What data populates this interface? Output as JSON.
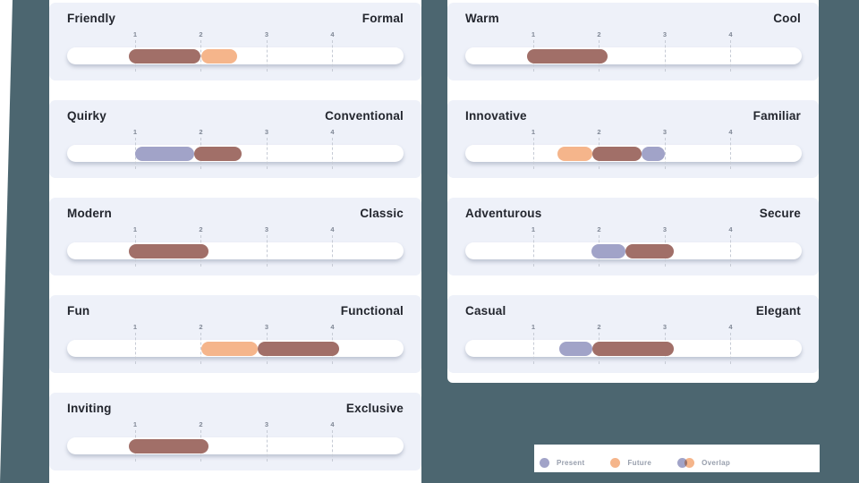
{
  "colors": {
    "background_panel": "#4c6670",
    "card_background": "#eef1f9",
    "track": "#ffffff",
    "present": "#a1a3c8",
    "future": "#f5b58b",
    "overlap": "#a16f68"
  },
  "scale": {
    "ticks": [
      "1",
      "2",
      "3",
      "4"
    ]
  },
  "columns": [
    {
      "name": "left",
      "rows": [
        {
          "left": "Friendly",
          "right": "Formal",
          "segments": [
            {
              "type": "overlap",
              "from": 0.9,
              "to": 2.0
            },
            {
              "type": "future",
              "from": 2.0,
              "to": 2.55
            }
          ]
        },
        {
          "left": "Quirky",
          "right": "Conventional",
          "segments": [
            {
              "type": "present",
              "from": 1.0,
              "to": 1.9
            },
            {
              "type": "overlap",
              "from": 1.9,
              "to": 2.62
            }
          ]
        },
        {
          "left": "Modern",
          "right": "Classic",
          "segments": [
            {
              "type": "overlap",
              "from": 0.9,
              "to": 2.12
            }
          ]
        },
        {
          "left": "Fun",
          "right": "Functional",
          "segments": [
            {
              "type": "future",
              "from": 2.0,
              "to": 2.87
            },
            {
              "type": "overlap",
              "from": 2.87,
              "to": 4.1
            }
          ]
        },
        {
          "left": "Inviting",
          "right": "Exclusive",
          "segments": [
            {
              "type": "overlap",
              "from": 0.9,
              "to": 2.12
            }
          ]
        }
      ]
    },
    {
      "name": "right",
      "rows": [
        {
          "left": "Warm",
          "right": "Cool",
          "segments": [
            {
              "type": "overlap",
              "from": 0.9,
              "to": 2.13
            }
          ]
        },
        {
          "left": "Innovative",
          "right": "Familiar",
          "segments": [
            {
              "type": "future",
              "from": 1.37,
              "to": 1.9
            },
            {
              "type": "overlap",
              "from": 1.9,
              "to": 2.65
            },
            {
              "type": "present",
              "from": 2.65,
              "to": 3.0
            }
          ]
        },
        {
          "left": "Adventurous",
          "right": "Secure",
          "segments": [
            {
              "type": "present",
              "from": 1.88,
              "to": 2.4
            },
            {
              "type": "overlap",
              "from": 2.4,
              "to": 3.13
            }
          ]
        },
        {
          "left": "Casual",
          "right": "Elegant",
          "segments": [
            {
              "type": "present",
              "from": 1.4,
              "to": 1.9
            },
            {
              "type": "overlap",
              "from": 1.9,
              "to": 3.13
            }
          ]
        }
      ]
    }
  ],
  "legend": {
    "items": [
      {
        "label": "Present",
        "swatch": "present"
      },
      {
        "label": "Future",
        "swatch": "future"
      },
      {
        "label": "Overlap",
        "swatch": "overlap"
      }
    ]
  }
}
